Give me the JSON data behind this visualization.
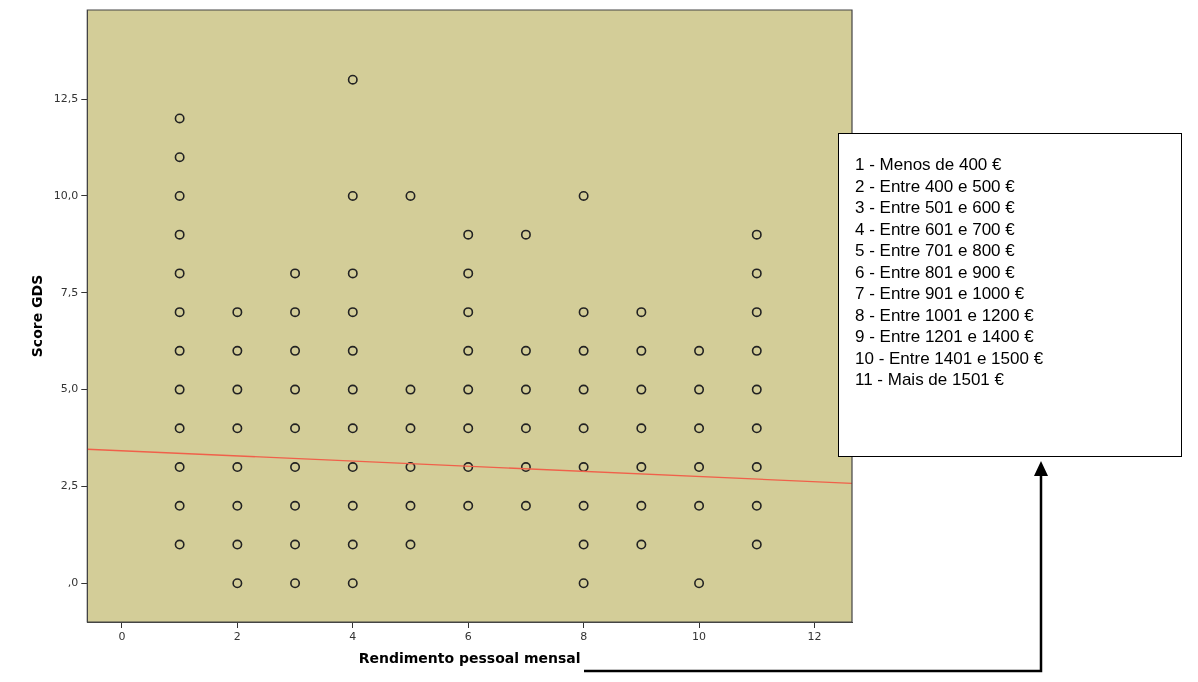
{
  "chart_data": {
    "type": "scatter",
    "xlabel": "Rendimento pessoal mensal",
    "ylabel": "Score GDS",
    "xlim": [
      -0.6,
      12.65
    ],
    "ylim": [
      -1,
      14.8
    ],
    "xticks": [
      0,
      2,
      4,
      6,
      8,
      10,
      12
    ],
    "yticks": [
      {
        "value": 0,
        "label": ",0"
      },
      {
        "value": 2.5,
        "label": "2,5"
      },
      {
        "value": 5,
        "label": "5,0"
      },
      {
        "value": 7.5,
        "label": "7,5"
      },
      {
        "value": 10,
        "label": "10,0"
      },
      {
        "value": 12.5,
        "label": "12,5"
      }
    ],
    "series": [
      {
        "type": "scatter",
        "marker": "circle",
        "color": "#222222",
        "x": [
          1,
          1,
          1,
          1,
          1,
          1,
          1,
          1,
          1,
          1,
          1,
          1,
          2,
          2,
          2,
          2,
          2,
          2,
          2,
          2,
          3,
          3,
          3,
          3,
          3,
          3,
          3,
          3,
          3,
          4,
          4,
          4,
          4,
          4,
          4,
          4,
          4,
          4,
          4,
          4,
          5,
          5,
          5,
          5,
          5,
          5,
          6,
          6,
          6,
          6,
          6,
          6,
          6,
          6,
          7,
          7,
          7,
          7,
          7,
          7,
          8,
          8,
          8,
          8,
          8,
          8,
          8,
          8,
          8,
          9,
          9,
          9,
          9,
          9,
          9,
          9,
          10,
          10,
          10,
          10,
          10,
          10,
          11,
          11,
          11,
          11,
          11,
          11,
          11,
          11,
          11
        ],
        "values": [
          1,
          2,
          3,
          4,
          5,
          6,
          7,
          8,
          9,
          10,
          11,
          12,
          0,
          1,
          2,
          3,
          4,
          5,
          6,
          7,
          0,
          1,
          2,
          3,
          4,
          5,
          6,
          7,
          8,
          0,
          1,
          2,
          3,
          4,
          5,
          6,
          7,
          8,
          10,
          13,
          1,
          2,
          3,
          4,
          5,
          10,
          2,
          3,
          4,
          5,
          6,
          7,
          8,
          9,
          2,
          3,
          4,
          5,
          6,
          9,
          0,
          1,
          2,
          3,
          4,
          5,
          6,
          7,
          10,
          1,
          2,
          3,
          4,
          5,
          6,
          7,
          0,
          2,
          3,
          4,
          5,
          6,
          1,
          2,
          3,
          4,
          5,
          6,
          7,
          8,
          9
        ]
      },
      {
        "type": "line",
        "color": "#f0604a",
        "x": [
          -0.6,
          12.65
        ],
        "values": [
          3.46,
          2.58
        ]
      }
    ],
    "annotations": [
      "1 - Menos de 400 €",
      "2 - Entre 400 e 500 €",
      "3 - Entre 501 e 600 €",
      "4 - Entre 601 e 700 €",
      "5 - Entre 701 e 800 €",
      "6 - Entre 801 e 900 €",
      "7 - Entre 901 e 1000 €",
      "8 - Entre 1001 e 1200 €",
      "9 - Entre 1201 e 1400 €",
      "10 - Entre 1401 e 1500 €",
      "11 - Mais de 1501 €"
    ]
  }
}
